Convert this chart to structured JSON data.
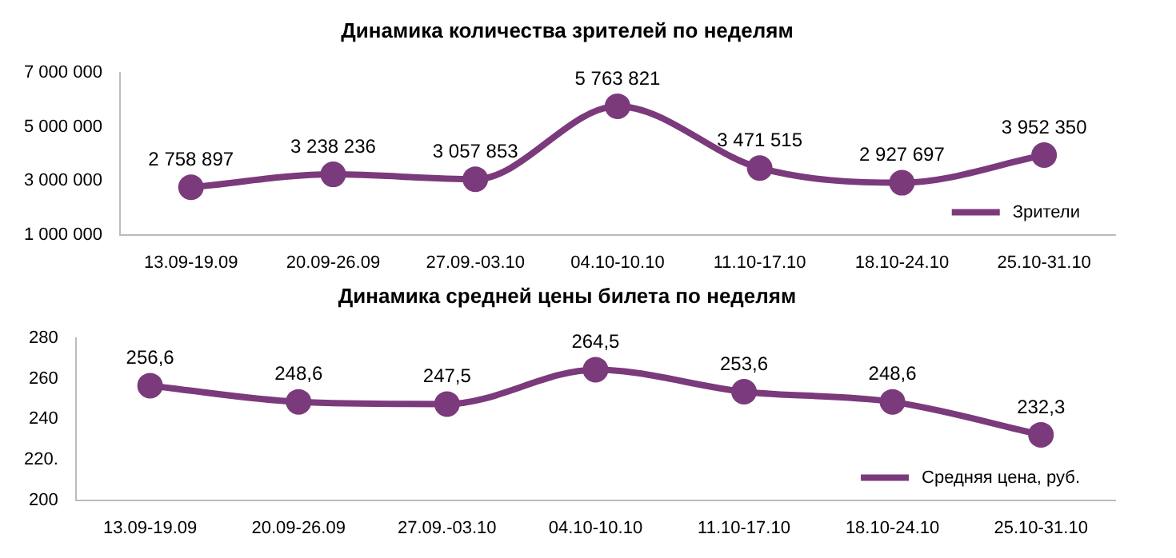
{
  "chart_data": [
    {
      "type": "line",
      "title": "Динамика количества зрителей по неделям",
      "categories": [
        "13.09-19.09",
        "20.09-26.09",
        "27.09.-03.10",
        "04.10-10.10",
        "11.10-17.10",
        "18.10-24.10",
        "25.10-31.10"
      ],
      "series": [
        {
          "name": "Зрители",
          "color": "#7b3a7b",
          "values": [
            2758897,
            3238236,
            3057853,
            5763821,
            3471515,
            2927697,
            3952350
          ],
          "value_labels": [
            "2 758 897",
            "3 238 236",
            "3 057 853",
            "5 763 821",
            "3 471 515",
            "2 927 697",
            "3 952 350"
          ]
        }
      ],
      "ylim": [
        1000000,
        7000000
      ],
      "yticks": [
        {
          "value": 1000000,
          "label": "1 000 000"
        },
        {
          "value": 3000000,
          "label": "3 000 000"
        },
        {
          "value": 5000000,
          "label": "5 000 000"
        },
        {
          "value": 7000000,
          "label": "7 000 000"
        }
      ],
      "grid": false,
      "legend": "bottom right",
      "marker": "circle",
      "line_style": "solid"
    },
    {
      "type": "line",
      "title": "Динамика средней цены билета по неделям",
      "categories": [
        "13.09-19.09",
        "20.09-26.09",
        "27.09.-03.10",
        "04.10-10.10",
        "11.10-17.10",
        "18.10-24.10",
        "25.10-31.10"
      ],
      "series": [
        {
          "name": "Средняя цена, руб.",
          "color": "#7b3a7b",
          "values": [
            256.6,
            248.6,
            247.5,
            264.5,
            253.6,
            248.6,
            232.3
          ],
          "value_labels": [
            "256,6",
            "248,6",
            "247,5",
            "264,5",
            "253,6",
            "248,6",
            "232,3"
          ]
        }
      ],
      "ylim": [
        200,
        280
      ],
      "yticks": [
        200,
        {
          "value": 220,
          "label": "220."
        },
        240,
        260,
        280
      ],
      "grid": false,
      "legend": "bottom right",
      "marker": "circle",
      "line_style": "solid"
    }
  ]
}
